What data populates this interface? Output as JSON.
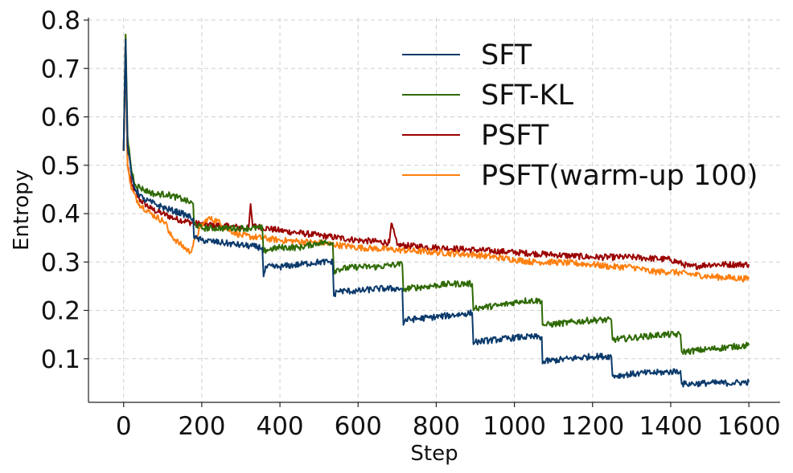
{
  "chart_data": {
    "type": "line",
    "title": "",
    "xlabel": "Step",
    "ylabel": "Entropy",
    "xlim": [
      -90,
      1680
    ],
    "ylim": [
      0.01,
      0.805
    ],
    "xticks": [
      0,
      200,
      400,
      600,
      800,
      1000,
      1200,
      1400,
      1600
    ],
    "xtick_labels": [
      "0",
      "200",
      "400",
      "600",
      "800",
      "1000",
      "1200",
      "1400",
      "1600"
    ],
    "yticks": [
      0.1,
      0.2,
      0.3,
      0.4,
      0.5,
      0.6,
      0.7,
      0.8
    ],
    "ytick_labels": [
      "0.1",
      "0.2",
      "0.3",
      "0.4",
      "0.5",
      "0.6",
      "0.7",
      "0.8"
    ],
    "grid": true,
    "legend_position": "top-right",
    "series": [
      {
        "name": "SFT",
        "color": "#0b3a6b",
        "x": [
          0,
          5,
          10,
          20,
          30,
          50,
          80,
          110,
          150,
          178,
          180,
          200,
          250,
          300,
          355,
          358,
          365,
          400,
          450,
          500,
          535,
          538,
          545,
          600,
          650,
          700,
          713,
          716,
          720,
          780,
          840,
          892,
          895,
          900,
          960,
          1020,
          1070,
          1072,
          1080,
          1140,
          1200,
          1248,
          1251,
          1260,
          1320,
          1380,
          1425,
          1428,
          1440,
          1500,
          1560,
          1600
        ],
        "y": [
          0.53,
          0.76,
          0.54,
          0.48,
          0.45,
          0.43,
          0.42,
          0.41,
          0.4,
          0.39,
          0.35,
          0.345,
          0.34,
          0.335,
          0.33,
          0.27,
          0.29,
          0.29,
          0.295,
          0.3,
          0.3,
          0.23,
          0.24,
          0.24,
          0.245,
          0.245,
          0.245,
          0.17,
          0.18,
          0.185,
          0.19,
          0.195,
          0.13,
          0.135,
          0.14,
          0.145,
          0.145,
          0.09,
          0.095,
          0.1,
          0.105,
          0.105,
          0.065,
          0.065,
          0.07,
          0.072,
          0.075,
          0.048,
          0.048,
          0.05,
          0.05,
          0.052
        ]
      },
      {
        "name": "SFT-KL",
        "color": "#2f6a05",
        "x": [
          0,
          5,
          10,
          20,
          30,
          50,
          80,
          110,
          150,
          178,
          180,
          200,
          250,
          300,
          355,
          358,
          365,
          400,
          450,
          500,
          535,
          538,
          545,
          600,
          650,
          700,
          713,
          716,
          720,
          780,
          840,
          892,
          895,
          900,
          960,
          1020,
          1070,
          1072,
          1080,
          1140,
          1200,
          1248,
          1251,
          1260,
          1320,
          1380,
          1425,
          1428,
          1440,
          1500,
          1560,
          1600
        ],
        "y": [
          0.53,
          0.77,
          0.56,
          0.49,
          0.46,
          0.45,
          0.44,
          0.44,
          0.43,
          0.42,
          0.38,
          0.37,
          0.37,
          0.37,
          0.37,
          0.32,
          0.325,
          0.33,
          0.33,
          0.34,
          0.34,
          0.28,
          0.285,
          0.29,
          0.29,
          0.295,
          0.295,
          0.24,
          0.245,
          0.25,
          0.255,
          0.255,
          0.2,
          0.205,
          0.21,
          0.22,
          0.22,
          0.17,
          0.17,
          0.175,
          0.18,
          0.18,
          0.14,
          0.14,
          0.145,
          0.15,
          0.15,
          0.115,
          0.115,
          0.12,
          0.125,
          0.128
        ]
      },
      {
        "name": "PSFT",
        "color": "#9b0000",
        "x": [
          0,
          5,
          10,
          20,
          40,
          70,
          100,
          130,
          180,
          250,
          320,
          325,
          330,
          400,
          500,
          600,
          680,
          685,
          700,
          800,
          900,
          1000,
          1100,
          1200,
          1300,
          1400,
          1450,
          1500,
          1600
        ],
        "y": [
          0.53,
          0.74,
          0.5,
          0.46,
          0.43,
          0.41,
          0.4,
          0.39,
          0.38,
          0.375,
          0.37,
          0.42,
          0.375,
          0.365,
          0.355,
          0.345,
          0.34,
          0.38,
          0.335,
          0.33,
          0.325,
          0.32,
          0.315,
          0.31,
          0.31,
          0.305,
          0.29,
          0.295,
          0.295
        ]
      },
      {
        "name": "PSFT(warm-up 100)",
        "color": "#ff7f0e",
        "x": [
          0,
          5,
          10,
          20,
          40,
          70,
          100,
          110,
          115,
          140,
          170,
          185,
          195,
          215,
          240,
          260,
          300,
          400,
          500,
          600,
          700,
          800,
          900,
          1000,
          1050,
          1100,
          1200,
          1250,
          1300,
          1350,
          1400,
          1500,
          1600
        ],
        "y": [
          0.53,
          0.77,
          0.5,
          0.45,
          0.42,
          0.4,
          0.385,
          0.38,
          0.36,
          0.34,
          0.32,
          0.35,
          0.37,
          0.39,
          0.385,
          0.37,
          0.355,
          0.345,
          0.34,
          0.33,
          0.325,
          0.32,
          0.315,
          0.305,
          0.3,
          0.3,
          0.295,
          0.29,
          0.29,
          0.28,
          0.28,
          0.27,
          0.265
        ]
      }
    ]
  }
}
